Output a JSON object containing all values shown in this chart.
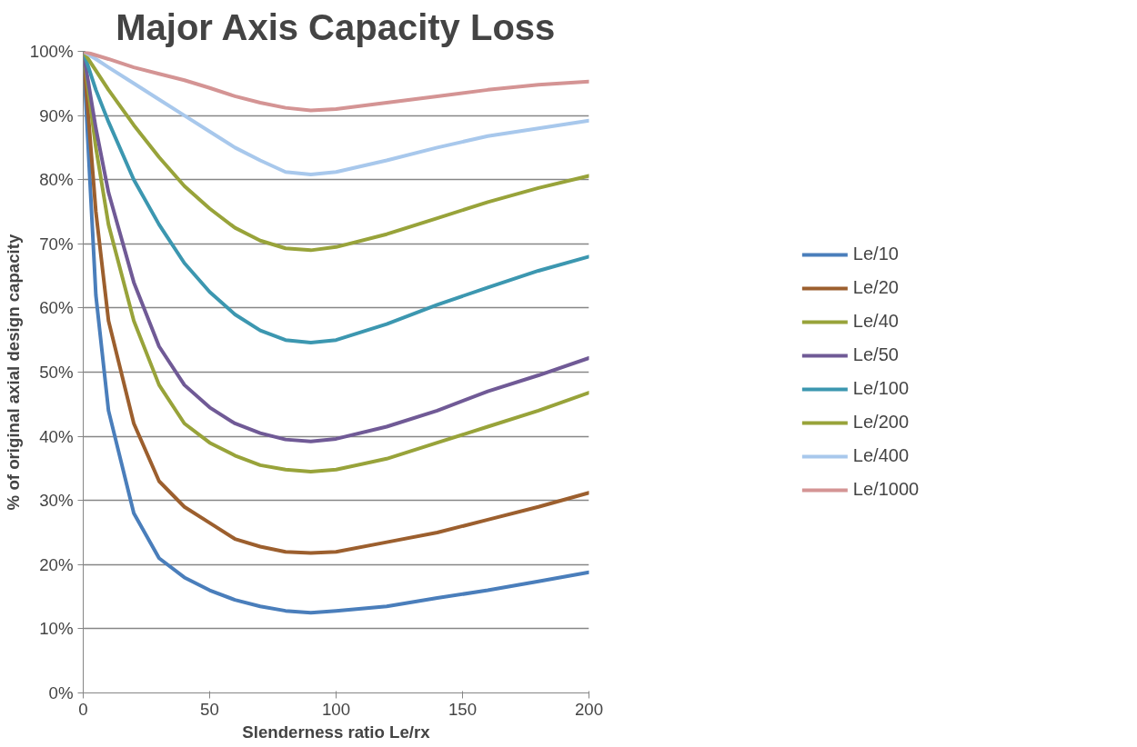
{
  "chart_data": {
    "type": "line",
    "title": "Major Axis Capacity Loss",
    "xlabel": "Slenderness ratio Le/rx",
    "ylabel": "% of original axial design capacity",
    "xlim": [
      0,
      200
    ],
    "xticks": [
      0,
      50,
      100,
      150,
      200
    ],
    "ylim": [
      0,
      100
    ],
    "yticks": [
      {
        "value": 0,
        "label": "0%"
      },
      {
        "value": 10,
        "label": "10%"
      },
      {
        "value": 20,
        "label": "20%"
      },
      {
        "value": 30,
        "label": "30%"
      },
      {
        "value": 40,
        "label": "40%"
      },
      {
        "value": 50,
        "label": "50%"
      },
      {
        "value": 60,
        "label": "60%"
      },
      {
        "value": 70,
        "label": "70%"
      },
      {
        "value": 80,
        "label": "80%"
      },
      {
        "value": 90,
        "label": "90%"
      },
      {
        "value": 100,
        "label": "100%"
      }
    ],
    "grid": "y",
    "legend": "right",
    "marker": "none",
    "line_style": "solid",
    "x": [
      0,
      5,
      10,
      20,
      30,
      40,
      50,
      60,
      70,
      80,
      90,
      100,
      120,
      140,
      160,
      180,
      200
    ],
    "series": [
      {
        "name": "Le/10",
        "color": "#4a7ebb",
        "values": [
          100,
          62,
          44,
          28,
          21,
          18,
          16,
          14.5,
          13.5,
          12.8,
          12.5,
          12.8,
          13.5,
          14.8,
          16,
          17.4,
          18.8
        ]
      },
      {
        "name": "Le/20",
        "color": "#9c5f2e",
        "values": [
          100,
          75,
          58,
          42,
          33,
          29,
          26.5,
          24,
          22.8,
          22,
          21.8,
          22,
          23.5,
          25,
          27,
          29,
          31.2
        ]
      },
      {
        "name": "Le/40",
        "color": "#98a33a",
        "values": [
          100,
          85,
          73,
          58,
          48,
          42,
          39,
          37,
          35.5,
          34.8,
          34.5,
          34.8,
          36.5,
          39,
          41.5,
          44,
          46.8
        ]
      },
      {
        "name": "Le/50",
        "color": "#705a96",
        "values": [
          100,
          88,
          78,
          64,
          54,
          48,
          44.5,
          42,
          40.5,
          39.5,
          39.2,
          39.6,
          41.5,
          44,
          47,
          49.5,
          52.2
        ]
      },
      {
        "name": "Le/100",
        "color": "#3c97b0",
        "values": [
          100,
          94,
          89,
          80,
          73,
          67,
          62.5,
          59,
          56.5,
          55,
          54.6,
          55,
          57.5,
          60.5,
          63.2,
          65.8,
          68
        ]
      },
      {
        "name": "Le/200",
        "color": "#98a33a",
        "values": [
          100,
          97,
          94,
          88.5,
          83.5,
          79,
          75.5,
          72.5,
          70.5,
          69.3,
          69,
          69.5,
          71.5,
          74,
          76.5,
          78.7,
          80.6
        ]
      },
      {
        "name": "Le/400",
        "color": "#a8c8ec",
        "values": [
          100,
          98.8,
          97.5,
          95,
          92.5,
          90,
          87.5,
          85,
          83,
          81.2,
          80.8,
          81.2,
          83,
          85,
          86.8,
          88,
          89.2
        ]
      },
      {
        "name": "Le/1000",
        "color": "#d49494",
        "values": [
          100,
          99.4,
          98.8,
          97.5,
          96.5,
          95.5,
          94.3,
          93,
          92,
          91.2,
          90.8,
          91,
          92,
          93,
          94,
          94.8,
          95.3
        ]
      }
    ]
  }
}
